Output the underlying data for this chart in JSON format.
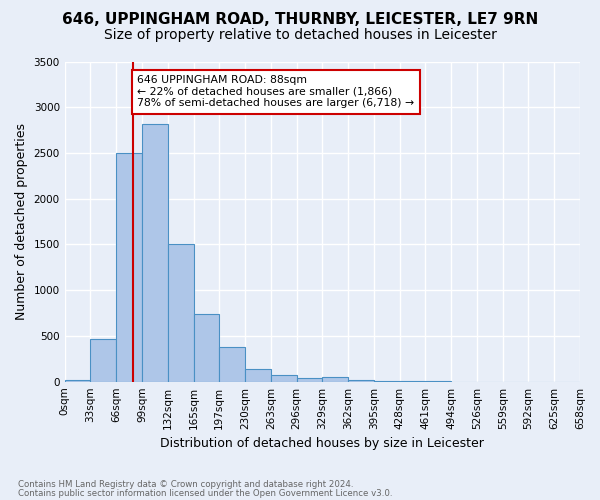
{
  "title": "646, UPPINGHAM ROAD, THURNBY, LEICESTER, LE7 9RN",
  "subtitle": "Size of property relative to detached houses in Leicester",
  "xlabel": "Distribution of detached houses by size in Leicester",
  "ylabel": "Number of detached properties",
  "footnote1": "Contains HM Land Registry data © Crown copyright and database right 2024.",
  "footnote2": "Contains public sector information licensed under the Open Government Licence v3.0.",
  "bin_labels": [
    "0sqm",
    "33sqm",
    "66sqm",
    "99sqm",
    "132sqm",
    "165sqm",
    "197sqm",
    "230sqm",
    "263sqm",
    "296sqm",
    "329sqm",
    "362sqm",
    "395sqm",
    "428sqm",
    "461sqm",
    "494sqm",
    "526sqm",
    "559sqm",
    "592sqm",
    "625sqm",
    "658sqm"
  ],
  "bar_values": [
    20,
    470,
    2500,
    2820,
    1500,
    740,
    380,
    140,
    70,
    40,
    50,
    20,
    5,
    5,
    5,
    0,
    0,
    0,
    0,
    0
  ],
  "bar_color": "#aec6e8",
  "bar_edge_color": "#4a90c4",
  "property_line_bin": 2.667,
  "annotation_text": "646 UPPINGHAM ROAD: 88sqm\n← 22% of detached houses are smaller (1,866)\n78% of semi-detached houses are larger (6,718) →",
  "annotation_box_color": "#ffffff",
  "annotation_box_edge": "#cc0000",
  "vline_color": "#cc0000",
  "ylim": [
    0,
    3500
  ],
  "yticks": [
    0,
    500,
    1000,
    1500,
    2000,
    2500,
    3000,
    3500
  ],
  "background_color": "#e8eef8",
  "grid_color": "#ffffff",
  "title_fontsize": 11,
  "subtitle_fontsize": 10,
  "axis_fontsize": 9
}
